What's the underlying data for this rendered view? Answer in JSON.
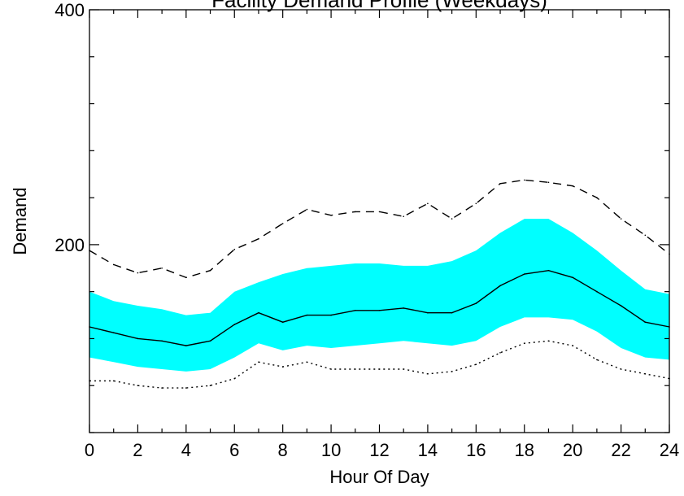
{
  "chart_data": {
    "type": "line",
    "title": "Facility Demand Profile (Weekdays)",
    "xlabel": "Hour Of Day",
    "ylabel": "Demand",
    "xlim": [
      0,
      24
    ],
    "ylim": [
      40,
      400
    ],
    "x_ticks": [
      "0",
      "2",
      "4",
      "6",
      "8",
      "10",
      "12",
      "14",
      "16",
      "18",
      "20",
      "22",
      "24"
    ],
    "x_tick_values": [
      0,
      2,
      4,
      6,
      8,
      10,
      12,
      14,
      16,
      18,
      20,
      22,
      24
    ],
    "y_ticks": [
      "200",
      "400"
    ],
    "y_tick_values": [
      200,
      400
    ],
    "grid": false,
    "colors": {
      "band": "#00ffff",
      "line": "#000000",
      "background": "#ffffff"
    },
    "hours": [
      0,
      1,
      2,
      3,
      4,
      5,
      6,
      7,
      8,
      9,
      10,
      11,
      12,
      13,
      14,
      15,
      16,
      17,
      18,
      19,
      20,
      21,
      22,
      23,
      24
    ],
    "series": [
      {
        "role": "max",
        "style": "dashed",
        "values": [
          195,
          183,
          176,
          180,
          172,
          178,
          196,
          205,
          218,
          230,
          225,
          228,
          228,
          224,
          235,
          222,
          235,
          252,
          255,
          253,
          250,
          240,
          222,
          208,
          192
        ]
      },
      {
        "role": "band-upper",
        "style": "fill",
        "values": [
          160,
          152,
          148,
          145,
          140,
          142,
          160,
          168,
          175,
          180,
          182,
          184,
          184,
          182,
          182,
          186,
          195,
          210,
          222,
          222,
          210,
          195,
          178,
          162,
          158
        ]
      },
      {
        "role": "mean",
        "style": "solid",
        "values": [
          130,
          125,
          120,
          118,
          114,
          118,
          132,
          142,
          134,
          140,
          140,
          144,
          144,
          146,
          142,
          142,
          150,
          165,
          175,
          178,
          172,
          160,
          148,
          134,
          130
        ]
      },
      {
        "role": "band-lower",
        "style": "fill",
        "values": [
          104,
          100,
          96,
          94,
          92,
          94,
          104,
          116,
          110,
          114,
          112,
          114,
          116,
          118,
          116,
          114,
          118,
          130,
          138,
          138,
          136,
          126,
          112,
          104,
          102
        ]
      },
      {
        "role": "min",
        "style": "dotted",
        "values": [
          84,
          84,
          80,
          78,
          78,
          80,
          86,
          100,
          96,
          100,
          94,
          94,
          94,
          94,
          90,
          92,
          98,
          108,
          116,
          118,
          114,
          102,
          94,
          90,
          86
        ]
      }
    ]
  }
}
